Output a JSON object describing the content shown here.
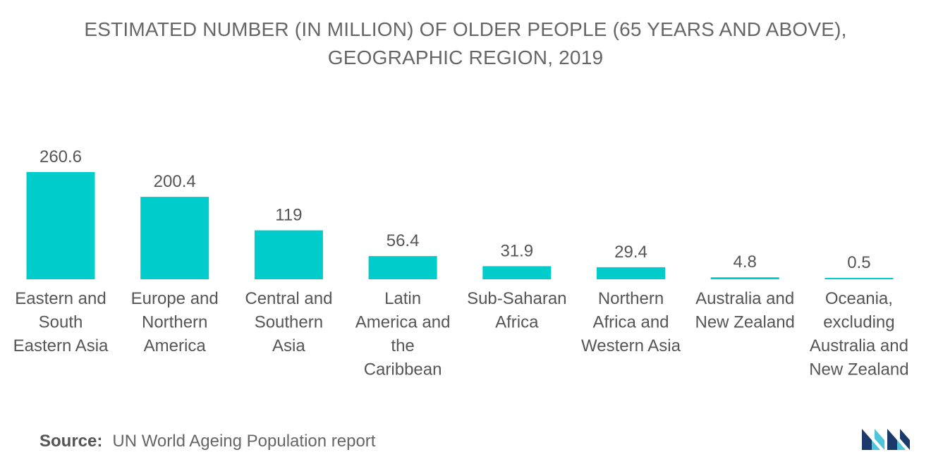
{
  "chart_data": {
    "type": "bar",
    "title_lines": [
      "ESTIMATED NUMBER (IN MILLION) OF OLDER PEOPLE (65 YEARS AND ABOVE),",
      "GEOGRAPHIC REGION, 2019"
    ],
    "categories": [
      [
        "Eastern and",
        "South",
        "Eastern Asia"
      ],
      [
        "Europe and",
        "Northern",
        "America"
      ],
      [
        "Central and",
        "Southern",
        "Asia"
      ],
      [
        "Latin",
        "America and",
        "the",
        "Caribbean"
      ],
      [
        "Sub-Saharan",
        "Africa"
      ],
      [
        "Northern",
        "Africa and",
        "Western Asia"
      ],
      [
        "Australia and",
        "New Zealand"
      ],
      [
        "Oceania,",
        "excluding",
        "Australia and",
        "New Zealand"
      ]
    ],
    "values": [
      260.6,
      200.4,
      119,
      56.4,
      31.9,
      29.4,
      4.8,
      0.5
    ],
    "value_labels": [
      "260.6",
      "200.4",
      "119",
      "56.4",
      "31.9",
      "29.4",
      "4.8",
      "0.5"
    ],
    "bar_color": "#00CCCC",
    "label_color": "#555555",
    "grid": false,
    "legend": "none"
  },
  "source": {
    "label": "Source:",
    "text": "UN World Ageing Population report"
  },
  "logo": {
    "icon": "mordor-intelligence-logo-icon",
    "colors": [
      "#1B3A6B",
      "#4FC3D9"
    ]
  }
}
